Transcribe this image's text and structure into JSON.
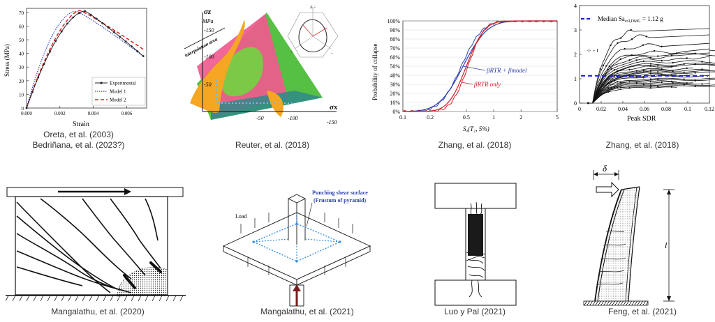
{
  "captions": {
    "p1_line1": "Oreta, et al. (2003)",
    "p1_line2": "Bedriñana, et al. (2023?)",
    "p2": "Reuter, et al. (2018)",
    "p3": "Zhang, et al. (2018)",
    "p4": "Zhang, et al. (2018)",
    "p5": "Mangalathu, et al. (2020)",
    "p6": "Mangalathu, et al. (2021)",
    "p7": "Luo y Pal (2021)",
    "p8": "Feng, et al. (2021)"
  },
  "chart1": {
    "ylabel": "Stress (MPa)",
    "xlabel": "Strain",
    "yticks": [
      "0",
      "10",
      "20",
      "30",
      "40",
      "50",
      "60",
      "70"
    ],
    "xticks": [
      "0.000",
      "0.002",
      "0.004",
      "0.006"
    ],
    "legend": [
      "Experimental",
      "Model 1",
      "Model 2"
    ],
    "colors": {
      "experimental": "#222222",
      "model1": "#3344cc",
      "model2": "#e02020"
    }
  },
  "chart2": {
    "axis_z": "σz",
    "unit": "MPa",
    "axis_x": "σx",
    "interp_label": "interpolation area",
    "yticks": [
      "-150",
      "-100",
      "-50"
    ],
    "xticks": [
      "-50",
      "-100",
      "-150"
    ],
    "inset_top": "Δ ÷",
    "inset_left": "÷",
    "inset_right": "÷"
  },
  "chart3": {
    "ylabel": "Probability of collapse",
    "xlabel": "Sₐ(T₁, 5%)",
    "yticks": [
      "0%",
      "10%",
      "20%",
      "30%",
      "40%",
      "50%",
      "60%",
      "70%",
      "80%",
      "90%",
      "100%"
    ],
    "xticks": [
      "0.1",
      "0.2",
      "0.5",
      "1",
      "2",
      "5"
    ],
    "label_blue": "βRTR + βmodel",
    "label_red": "βRTR only",
    "colors": {
      "blue": "#2a3fb0",
      "red": "#d0202a"
    }
  },
  "chart4": {
    "xlabel": "Peak SDR",
    "xticks": [
      "0",
      "0.02",
      "0.04",
      "0.06",
      "0.08",
      "0.1",
      "0.12"
    ],
    "yticks": [
      "0",
      "1",
      "2",
      "3",
      "4"
    ],
    "legend": "Median Sa",
    "legend_sub": "col,DMG",
    "legend_val": " = 1.12 g",
    "ylabel_frag": "·r· ⌐ I",
    "colors": {
      "dash": "#1a1ad0"
    }
  },
  "diagram6": {
    "title1": "Punching shear surface",
    "title2": "(Frustum of pyramid)",
    "load": "Load"
  },
  "diagram8": {
    "delta": "δ",
    "length": "l"
  }
}
